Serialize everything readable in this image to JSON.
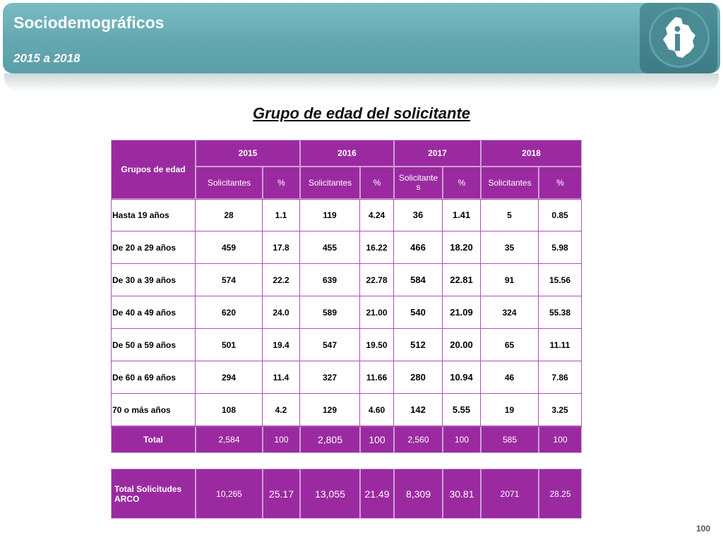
{
  "header": {
    "title": "Sociodemográficos",
    "subtitle": "2015 a 2018",
    "logo_icon": "mexico-city-logo-icon"
  },
  "heading": "Grupo de edad del solicitante",
  "table": {
    "first_col_header": "Grupos de edad",
    "years": [
      "2015",
      "2016",
      "2017",
      "2018"
    ],
    "subheaders": [
      "Solicitantes",
      "%",
      "Solicitantes",
      "%",
      "Solicitante s",
      "%",
      "Solicitantes",
      "%"
    ],
    "rows": [
      {
        "label": "Hasta 19 años",
        "values": [
          "28",
          "1.1",
          "119",
          "4.24",
          "36",
          "1.41",
          "5",
          "0.85"
        ]
      },
      {
        "label": "De 20 a 29 años",
        "values": [
          "459",
          "17.8",
          "455",
          "16.22",
          "466",
          "18.20",
          "35",
          "5.98"
        ]
      },
      {
        "label": "De 30 a 39 años",
        "values": [
          "574",
          "22.2",
          "639",
          "22.78",
          "584",
          "22.81",
          "91",
          "15.56"
        ]
      },
      {
        "label": "De 40 a 49 años",
        "values": [
          "620",
          "24.0",
          "589",
          "21.00",
          "540",
          "21.09",
          "324",
          "55.38"
        ]
      },
      {
        "label": "De 50 a 59 años",
        "values": [
          "501",
          "19.4",
          "547",
          "19.50",
          "512",
          "20.00",
          "65",
          "11.11"
        ]
      },
      {
        "label": "De 60 a 69 años",
        "values": [
          "294",
          "11.4",
          "327",
          "11.66",
          "280",
          "10.94",
          "46",
          "7.86"
        ]
      },
      {
        "label": "70 o más años",
        "values": [
          "108",
          "4.2",
          "129",
          "4.60",
          "142",
          "5.55",
          "19",
          "3.25"
        ]
      }
    ],
    "total": {
      "label": "Total",
      "values": [
        "2,584",
        "100",
        "2,805",
        "100",
        "2,560",
        "100",
        "585",
        "100"
      ]
    },
    "summary": {
      "label": "Total Solicitudes ARCO",
      "values": [
        "10,265",
        "25.17",
        "13,055",
        "21.49",
        "8,309",
        "30.81",
        "2071",
        "28.25"
      ]
    }
  },
  "page_number": "100",
  "colors": {
    "header_bg": "#9b2aa0",
    "banner": "#6aaeb6"
  }
}
